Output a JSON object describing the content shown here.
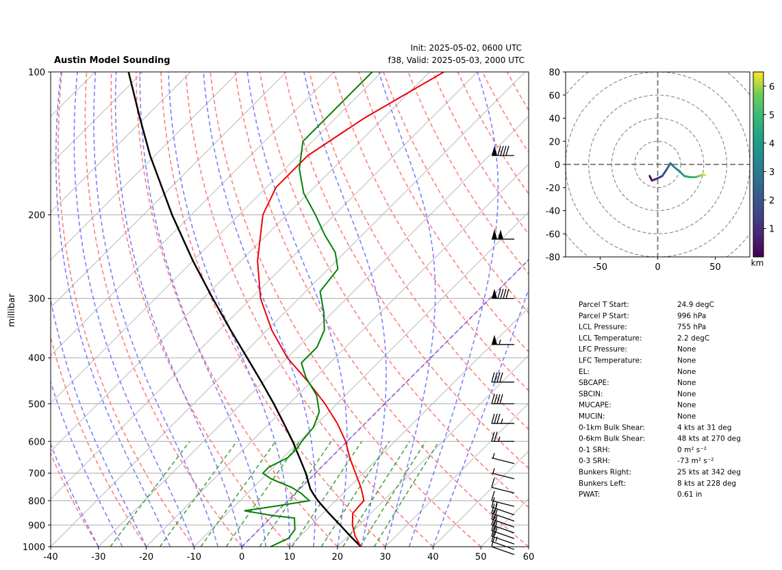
{
  "header": {
    "title": "Austin Model Sounding",
    "init": "Init: 2025-05-02, 0600 UTC",
    "valid": "f38, Valid: 2025-05-03, 2000 UTC"
  },
  "chart_data": [
    {
      "type": "skew-t",
      "title": "Austin Model Sounding",
      "ylabel": "millibar",
      "xlim": [
        -40,
        60
      ],
      "ylim": [
        1000,
        100
      ],
      "y_scale": "log",
      "x_ticks": [
        -40,
        -30,
        -20,
        -10,
        0,
        10,
        20,
        30,
        40,
        50,
        60
      ],
      "y_ticks": [
        100,
        200,
        300,
        400,
        500,
        600,
        700,
        800,
        900,
        1000
      ],
      "temperature": {
        "color": "#ee0000",
        "p": [
          1000,
          950,
          900,
          850,
          800,
          780,
          750,
          700,
          650,
          600,
          550,
          500,
          450,
          400,
          350,
          300,
          250,
          200,
          175,
          150,
          125,
          110,
          100
        ],
        "t": [
          24.9,
          21.5,
          18.6,
          16.2,
          15.9,
          14.6,
          12.5,
          8.4,
          4.0,
          -0.3,
          -5.8,
          -12.5,
          -20.5,
          -30.0,
          -39.0,
          -48.0,
          -56.5,
          -65.0,
          -68.0,
          -68.0,
          -64.0,
          -60.0,
          -57.0
        ]
      },
      "dewpoint": {
        "color": "#008000",
        "p": [
          1000,
          960,
          920,
          870,
          860,
          840,
          820,
          800,
          770,
          750,
          720,
          700,
          680,
          650,
          620,
          600,
          560,
          520,
          480,
          440,
          410,
          380,
          350,
          320,
          290,
          260,
          240,
          220,
          200,
          180,
          160,
          140,
          125,
          112,
          100
        ],
        "td": [
          6.0,
          8.0,
          7.5,
          5.0,
          0.0,
          -7.0,
          -1.0,
          4.5,
          1.0,
          -2.0,
          -8.0,
          -11.0,
          -11.0,
          -9.0,
          -9.0,
          -9.5,
          -10.0,
          -12.0,
          -16.0,
          -22.0,
          -26.0,
          -26.0,
          -28.0,
          -32.0,
          -37.0,
          -38.0,
          -42.0,
          -48.0,
          -54.0,
          -61.0,
          -67.0,
          -72.0,
          -72.0,
          -72.0,
          -72.0
        ]
      },
      "parcel": {
        "color": "#000000",
        "p": [
          1000,
          950,
          900,
          850,
          800,
          775,
          755,
          700,
          650,
          600,
          550,
          500,
          450,
          400,
          350,
          300,
          250,
          200,
          150,
          125,
          100
        ],
        "t": [
          24.9,
          20.5,
          16.0,
          11.2,
          6.3,
          4.0,
          2.2,
          -2.0,
          -6.5,
          -11.4,
          -17.0,
          -23.2,
          -30.3,
          -38.4,
          -47.6,
          -58.0,
          -70.0,
          -84.0,
          -101.0,
          -111.0,
          -123.0
        ]
      },
      "wind_barbs": [
        {
          "p": 1000,
          "speed_kts": 10
        },
        {
          "p": 975,
          "speed_kts": 15
        },
        {
          "p": 950,
          "speed_kts": 20
        },
        {
          "p": 925,
          "speed_kts": 20
        },
        {
          "p": 900,
          "speed_kts": 20
        },
        {
          "p": 875,
          "speed_kts": 20
        },
        {
          "p": 850,
          "speed_kts": 20
        },
        {
          "p": 825,
          "speed_kts": 15
        },
        {
          "p": 800,
          "speed_kts": 10
        },
        {
          "p": 750,
          "speed_kts": 10
        },
        {
          "p": 700,
          "speed_kts": 5
        },
        {
          "p": 650,
          "speed_kts": 5
        },
        {
          "p": 600,
          "speed_kts": 25
        },
        {
          "p": 550,
          "speed_kts": 35
        },
        {
          "p": 500,
          "speed_kts": 40
        },
        {
          "p": 450,
          "speed_kts": 40
        },
        {
          "p": 375,
          "speed_kts": 55
        },
        {
          "p": 300,
          "speed_kts": 90
        },
        {
          "p": 225,
          "speed_kts": 100
        },
        {
          "p": 150,
          "speed_kts": 90
        }
      ],
      "reference_lines": {
        "dry_adiabats_color": "#ff6666",
        "moist_adiabats_color": "#6666ff",
        "mixing_ratio_color": "#339933",
        "zero_isotherm_color": "#8844cc",
        "isobar_color": "#aaaaaa"
      }
    },
    {
      "type": "hodograph",
      "xlim": [
        -80,
        80
      ],
      "ylim": [
        -80,
        80
      ],
      "x_ticks": [
        -50,
        0,
        50
      ],
      "y_ticks": [
        -80,
        -60,
        -40,
        -20,
        0,
        20,
        40,
        60,
        80
      ],
      "ring_spacing": 20,
      "colorbar": {
        "label": "km",
        "ticks": [
          1,
          2,
          3,
          4,
          5,
          6
        ],
        "min": 0,
        "max": 6.5,
        "colormap": "viridis"
      },
      "trace": [
        {
          "u": -7,
          "v": -10,
          "km": 0.0
        },
        {
          "u": -5,
          "v": -14,
          "km": 0.5
        },
        {
          "u": 0,
          "v": -12,
          "km": 1.0
        },
        {
          "u": 4,
          "v": -10,
          "km": 1.5
        },
        {
          "u": 8,
          "v": -4,
          "km": 2.0
        },
        {
          "u": 11,
          "v": 1,
          "km": 2.5
        },
        {
          "u": 14,
          "v": -2,
          "km": 3.0
        },
        {
          "u": 19,
          "v": -6,
          "km": 3.5
        },
        {
          "u": 23,
          "v": -10,
          "km": 4.0
        },
        {
          "u": 28,
          "v": -11,
          "km": 4.5
        },
        {
          "u": 33,
          "v": -11,
          "km": 5.0
        },
        {
          "u": 36,
          "v": -10,
          "km": 5.5
        },
        {
          "u": 39,
          "v": -9,
          "km": 6.0
        },
        {
          "u": 41,
          "v": -9,
          "km": 6.4
        }
      ]
    }
  ],
  "parameters": [
    {
      "label": "Parcel T Start:",
      "value": "24.9 degC"
    },
    {
      "label": "Parcel P Start:",
      "value": "996 hPa"
    },
    {
      "label": "LCL Pressure:",
      "value": "755 hPa"
    },
    {
      "label": "LCL Temperature:",
      "value": "2.2 degC"
    },
    {
      "label": "LFC Pressure:",
      "value": "None"
    },
    {
      "label": "LFC Temperature:",
      "value": "None"
    },
    {
      "label": "EL:",
      "value": "None"
    },
    {
      "label": "SBCAPE:",
      "value": "None"
    },
    {
      "label": "SBCIN:",
      "value": "None"
    },
    {
      "label": "MUCAPE:",
      "value": "None"
    },
    {
      "label": "MUCIN:",
      "value": "None"
    },
    {
      "label": "0-1km Bulk Shear:",
      "value": "4 kts at 31 deg"
    },
    {
      "label": "0-6km Bulk Shear:",
      "value": "48 kts at 270 deg"
    },
    {
      "label": "0-1 SRH:",
      "value": "0 m² s⁻²"
    },
    {
      "label": "0-3 SRH:",
      "value": "-73 m² s⁻²"
    },
    {
      "label": "Bunkers Right:",
      "value": "25 kts at 342 deg"
    },
    {
      "label": "Bunkers Left:",
      "value": "8 kts at 228 deg"
    },
    {
      "label": "PWAT:",
      "value": "0.61 in"
    }
  ]
}
